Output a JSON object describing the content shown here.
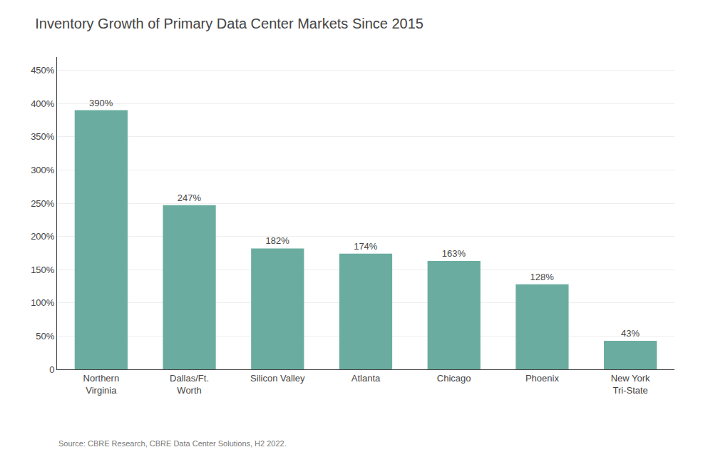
{
  "chart_data": {
    "type": "bar",
    "title": "Inventory Growth of Primary Data Center Markets Since 2015",
    "categories": [
      "Northern\nVirginia",
      "Dallas/Ft.\nWorth",
      "Silicon Valley",
      "Atlanta",
      "Chicago",
      "Phoenix",
      "New York\nTri-State"
    ],
    "values": [
      390,
      247,
      182,
      174,
      163,
      128,
      43
    ],
    "value_labels": [
      "390%",
      "247%",
      "182%",
      "174%",
      "163%",
      "128%",
      "43%"
    ],
    "data_labels": true,
    "color": "#6aada0",
    "ylim": [
      0,
      470
    ],
    "yticks": [
      0,
      {
        "value": 50,
        "label": "50%"
      },
      {
        "value": 100,
        "label": "100%"
      },
      {
        "value": 150,
        "label": "150%"
      },
      {
        "value": 200,
        "label": "200%"
      },
      {
        "value": 250,
        "label": "250%"
      },
      {
        "value": 300,
        "label": "300%"
      },
      {
        "value": 350,
        "label": "350%"
      },
      {
        "value": 400,
        "label": "400%"
      },
      {
        "value": 450,
        "label": "450%"
      }
    ],
    "grid": true,
    "annotations": [
      "Source: CBRE Research, CBRE Data Center Solutions, H2 2022."
    ]
  }
}
